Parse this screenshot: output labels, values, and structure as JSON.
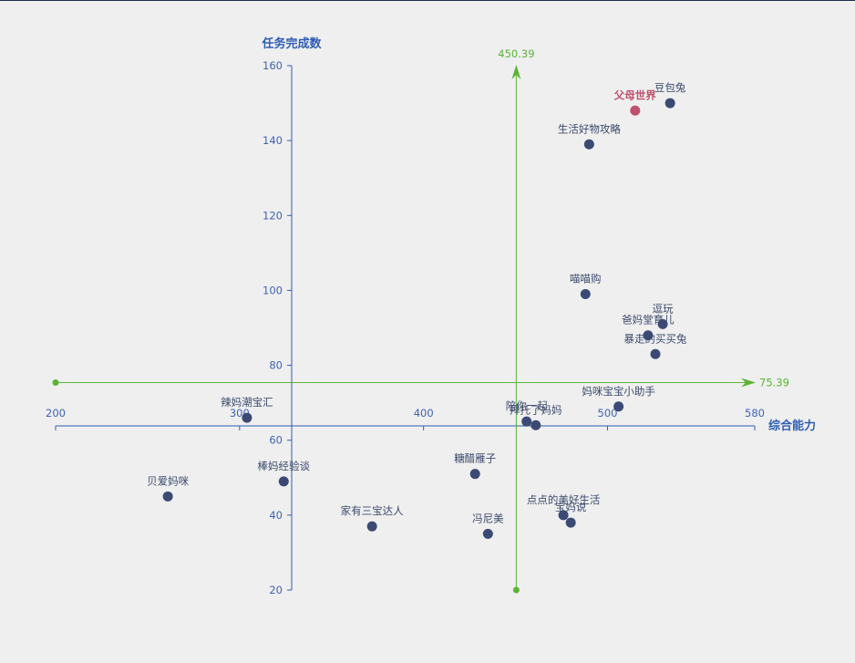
{
  "chart_data": {
    "type": "scatter",
    "title": "",
    "xlabel": "综合能力",
    "ylabel": "任务完成数",
    "xlim": [
      200,
      580
    ],
    "ylim": [
      20,
      160
    ],
    "x_ticks": [
      "200",
      "300",
      "400",
      "500",
      "580"
    ],
    "y_ticks": [
      "20",
      "40",
      "60",
      "80",
      "100",
      "120",
      "140",
      "160"
    ],
    "reference_lines": {
      "vertical": {
        "x": 450.39,
        "label": "450.39"
      },
      "horizontal": {
        "y": 75.39,
        "label": "75.39"
      }
    },
    "colors": {
      "point": "#3b4a75",
      "highlight": "#c0506e",
      "reference": "#5ab335",
      "axis": "#2f5db3"
    },
    "points": [
      {
        "name": "豆包兔",
        "x": 534,
        "y": 150
      },
      {
        "name": "父母世界",
        "x": 515,
        "y": 148,
        "highlight": true
      },
      {
        "name": "生活好物攻略",
        "x": 490,
        "y": 139
      },
      {
        "name": "喵喵购",
        "x": 488,
        "y": 99
      },
      {
        "name": "逗玩",
        "x": 530,
        "y": 91
      },
      {
        "name": "爸妈堂育儿",
        "x": 522,
        "y": 88
      },
      {
        "name": "暴走的买买兔",
        "x": 526,
        "y": 83
      },
      {
        "name": "妈咪宝宝小助手",
        "x": 506,
        "y": 69
      },
      {
        "name": "辣妈潮宝汇",
        "x": 304,
        "y": 66
      },
      {
        "name": "陪你一起",
        "x": 456,
        "y": 65
      },
      {
        "name": "拜托了妈妈",
        "x": 461,
        "y": 64
      },
      {
        "name": "糖醋雁子",
        "x": 428,
        "y": 51
      },
      {
        "name": "棒妈经验谈",
        "x": 324,
        "y": 49
      },
      {
        "name": "贝爱妈咪",
        "x": 261,
        "y": 45
      },
      {
        "name": "点点的美好生活",
        "x": 476,
        "y": 40
      },
      {
        "name": "宝妈说",
        "x": 480,
        "y": 38
      },
      {
        "name": "家有三宝达人",
        "x": 372,
        "y": 37
      },
      {
        "name": "冯尼美",
        "x": 435,
        "y": 35
      }
    ]
  }
}
